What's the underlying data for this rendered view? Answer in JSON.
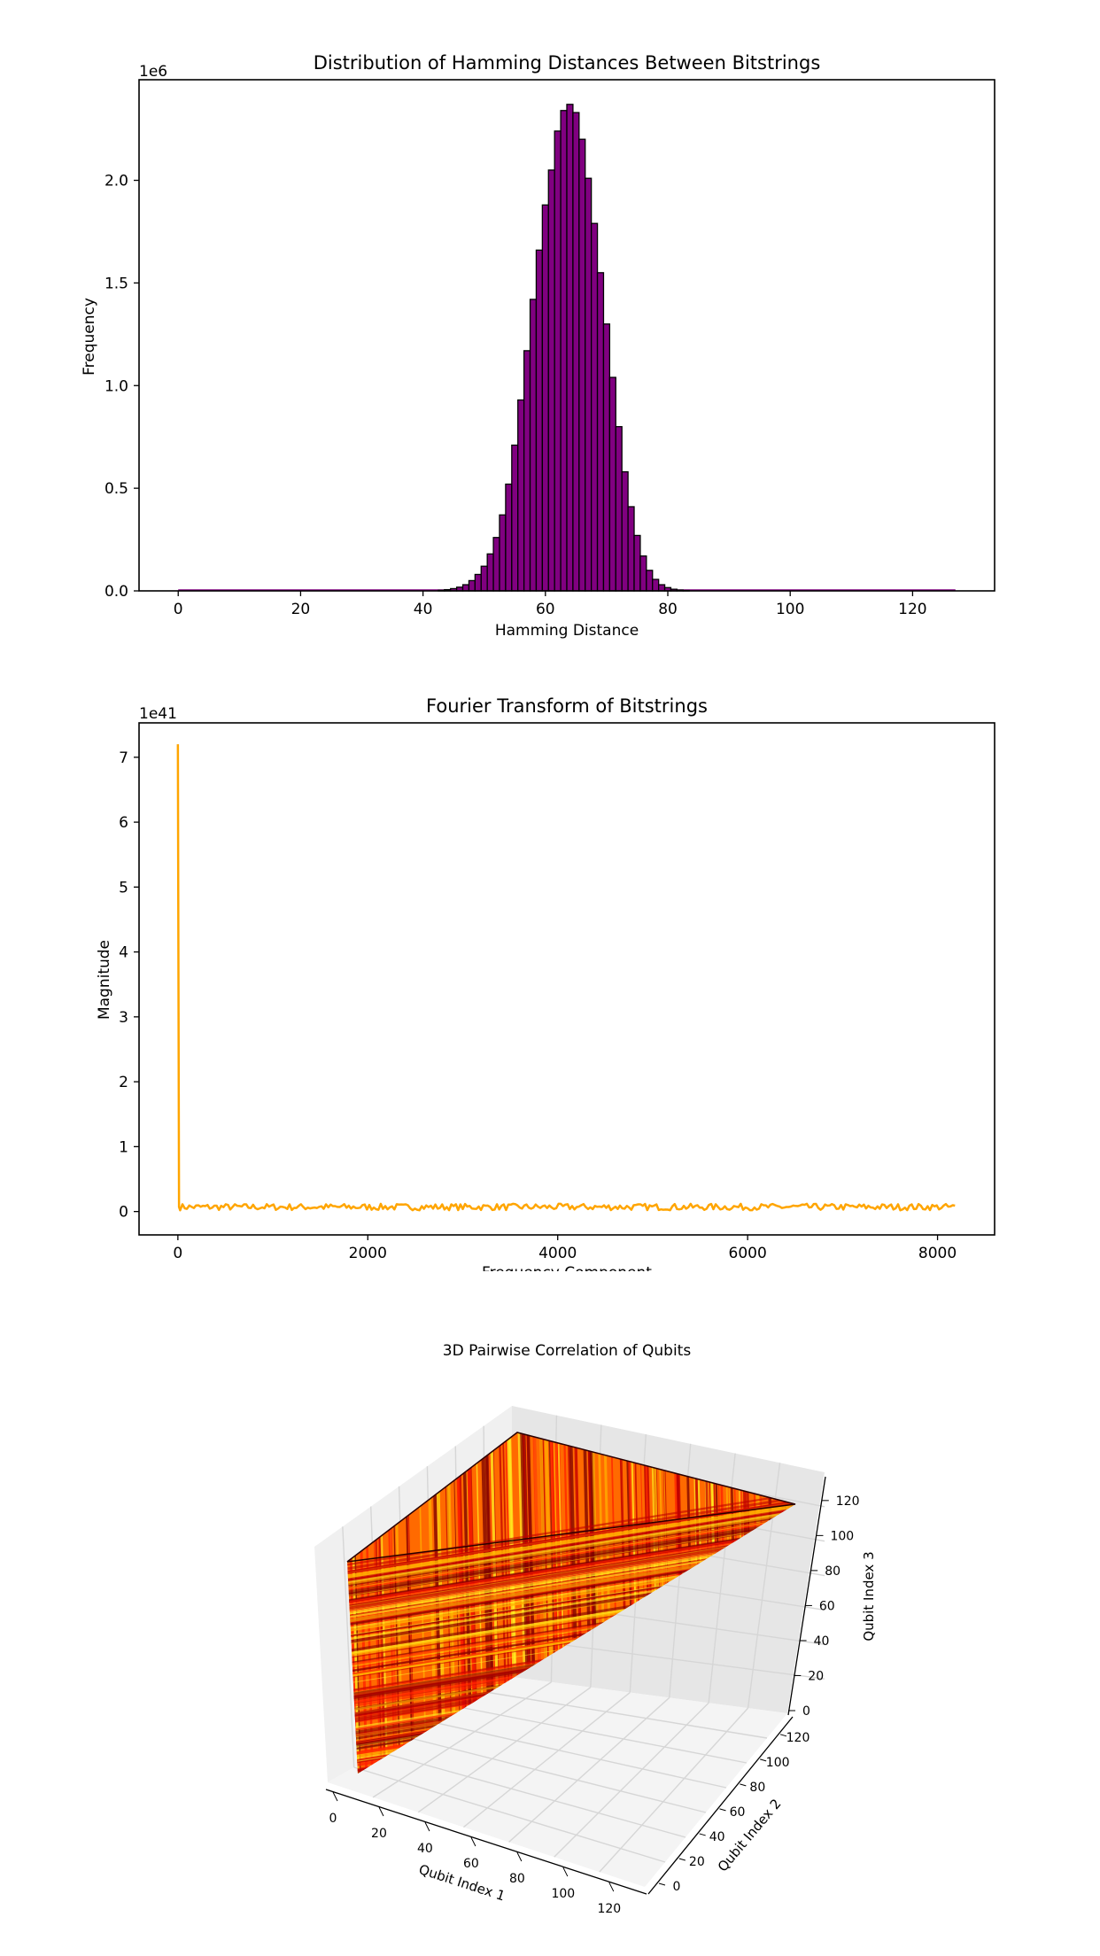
{
  "chart_data": [
    {
      "type": "bar",
      "title": "Distribution of Hamming Distances Between Bitstrings",
      "xlabel": "Hamming Distance",
      "ylabel": "Frequency",
      "offset_label": "1e6",
      "xlim": [
        -6.4,
        133.4
      ],
      "ylim": [
        0,
        2.49
      ],
      "xticks": [
        0,
        20,
        40,
        60,
        80,
        100,
        120
      ],
      "yticks": [
        0.0,
        0.5,
        1.0,
        1.5,
        2.0
      ],
      "bar_color": "#800080",
      "bar_edge_color": "#000000",
      "bin_width": 1,
      "categories": [
        43,
        44,
        45,
        46,
        47,
        48,
        49,
        50,
        51,
        52,
        53,
        54,
        55,
        56,
        57,
        58,
        59,
        60,
        61,
        62,
        63,
        64,
        65,
        66,
        67,
        68,
        69,
        70,
        71,
        72,
        73,
        74,
        75,
        76,
        77,
        78,
        79,
        80,
        81,
        82,
        83
      ],
      "values": [
        0.003,
        0.006,
        0.011,
        0.018,
        0.03,
        0.05,
        0.08,
        0.12,
        0.18,
        0.26,
        0.37,
        0.52,
        0.71,
        0.93,
        1.17,
        1.42,
        1.66,
        1.88,
        2.05,
        2.24,
        2.34,
        2.37,
        2.33,
        2.2,
        2.01,
        1.79,
        1.55,
        1.3,
        1.04,
        0.8,
        0.58,
        0.41,
        0.27,
        0.17,
        0.1,
        0.056,
        0.03,
        0.016,
        0.008,
        0.004,
        0.002
      ]
    },
    {
      "type": "line",
      "title": "Fourier Transform of Bitstrings",
      "xlabel": "Frequency Component",
      "ylabel": "Magnitude",
      "offset_label": "1e41",
      "xlim": [
        -409,
        8601
      ],
      "ylim": [
        -0.36,
        7.53
      ],
      "xticks": [
        0,
        2000,
        4000,
        6000,
        8000
      ],
      "yticks": [
        0,
        1,
        2,
        3,
        4,
        5,
        6,
        7
      ],
      "line_color": "#ffa500",
      "series": [
        {
          "x": [
            0,
            8192
          ],
          "peak": {
            "x": 0,
            "y": 7.2
          },
          "baseline": 0.07
        }
      ]
    },
    {
      "type": "surface3d",
      "title": "3D Pairwise Correlation of Qubits",
      "xlabel": "Qubit Index 1",
      "ylabel": "Qubit Index 2",
      "zlabel": "Qubit Index 3",
      "xticks": [
        0,
        20,
        40,
        60,
        80,
        100,
        120
      ],
      "yticks": [
        0,
        20,
        40,
        60,
        80,
        100,
        120
      ],
      "zticks": [
        0,
        20,
        40,
        60,
        80,
        100,
        120
      ],
      "colormap": "hot",
      "colormap_colors": [
        "#7a0000",
        "#c00000",
        "#ff2000",
        "#ff6a00",
        "#ffb000",
        "#ffee20"
      ]
    }
  ]
}
